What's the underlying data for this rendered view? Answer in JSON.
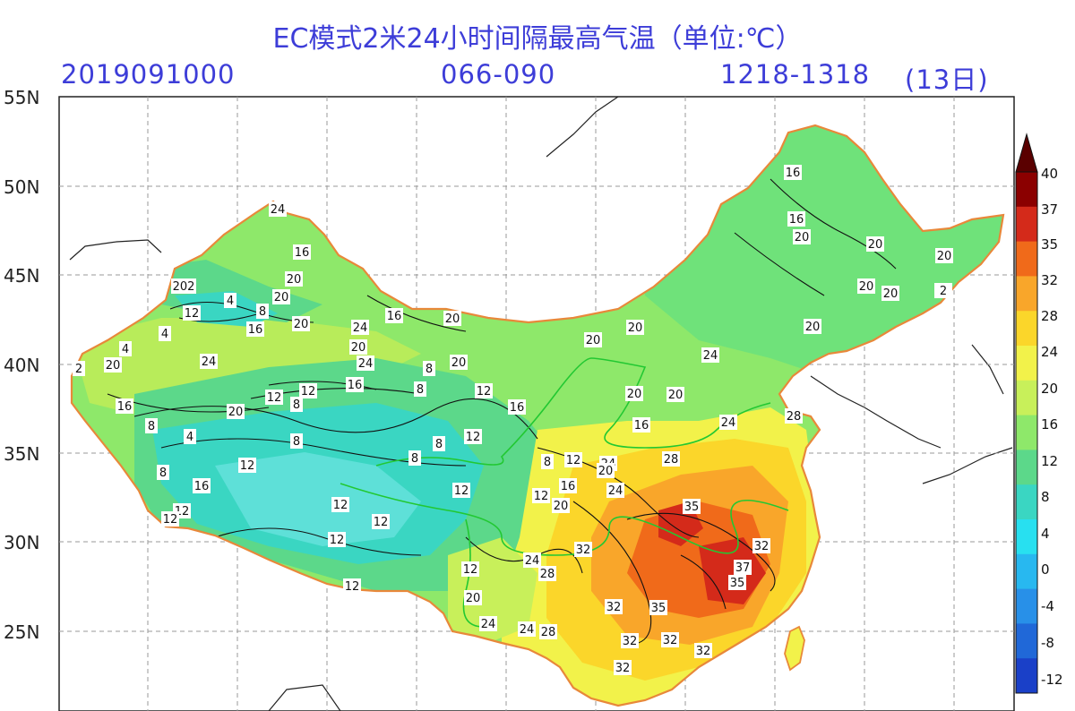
{
  "header": {
    "title": "EC模式2米24小时间隔最高气温（单位:℃）",
    "init_time": "2019091000",
    "forecast_hours": "066-090",
    "valid_range": "1218-1318",
    "valid_day": "(13日)"
  },
  "latitude_labels": [
    "55N",
    "50N",
    "45N",
    "40N",
    "35N",
    "30N",
    "25N"
  ],
  "colorbar": {
    "levels": [
      "40",
      "37",
      "35",
      "32",
      "28",
      "24",
      "20",
      "16",
      "12",
      "8",
      "4",
      "0",
      "-4",
      "-8",
      "-12"
    ],
    "colors": [
      "#8b0000",
      "#d42a1a",
      "#f06a1a",
      "#f9a62a",
      "#fbd62a",
      "#f2f24a",
      "#c8f05a",
      "#8ee86a",
      "#5cd88a",
      "#3ad6c2",
      "#28e0f0",
      "#28b8f0",
      "#2890e8",
      "#2068d8",
      "#1a40c8"
    ]
  },
  "contour_labels": [
    "16",
    "16",
    "20",
    "20",
    "20",
    "20",
    "20",
    "20",
    "2",
    "20",
    "20",
    "20",
    "24",
    "16",
    "20",
    "20",
    "20",
    "202",
    "12",
    "4",
    "8",
    "16",
    "20",
    "24",
    "16",
    "20",
    "20",
    "20",
    "24",
    "4",
    "20",
    "24",
    "24",
    "16",
    "8",
    "8",
    "12",
    "12",
    "12",
    "16",
    "8",
    "20",
    "4",
    "16",
    "8",
    "8",
    "12",
    "8",
    "8",
    "12",
    "16",
    "12",
    "12",
    "12",
    "12",
    "8",
    "12",
    "24",
    "20",
    "24",
    "16",
    "20",
    "20",
    "12",
    "12",
    "20",
    "24",
    "24",
    "28",
    "32",
    "24",
    "28",
    "35",
    "32",
    "37",
    "35",
    "32",
    "35",
    "32",
    "32",
    "32",
    "32",
    "28",
    "24",
    "28",
    "16",
    "2",
    "4",
    "8",
    "12",
    "12",
    "12"
  ]
}
